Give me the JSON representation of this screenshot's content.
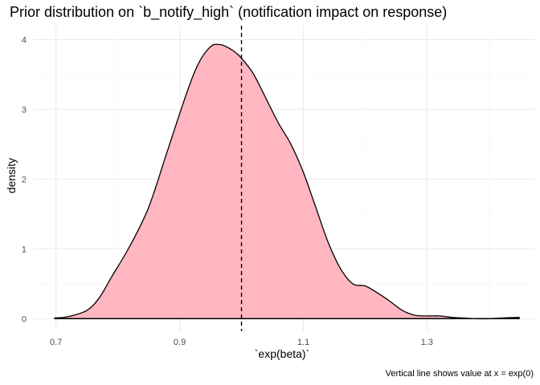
{
  "chart_data": {
    "type": "area",
    "title": "Prior distribution on `b_notify_high` (notification impact on response)",
    "xlabel": "`exp(beta)`",
    "ylabel": "density",
    "caption": "Vertical line shows value at x = exp(0)",
    "xlim": [
      0.664,
      1.475
    ],
    "ylim": [
      -0.18,
      4.2
    ],
    "x_ticks": [
      0.7,
      0.9,
      1.1,
      1.3
    ],
    "x_tick_labels": [
      "0.7",
      "0.9",
      "1.1",
      "1.3"
    ],
    "x_minor": [
      0.8,
      1.0,
      1.2,
      1.4
    ],
    "y_ticks": [
      0,
      1,
      2,
      3,
      4
    ],
    "y_tick_labels": [
      "0",
      "1",
      "2",
      "3",
      "4"
    ],
    "y_minor": [
      0.5,
      1.5,
      2.5,
      3.5
    ],
    "grid": true,
    "fill_color": "#FFB6C1",
    "line_color": "#000000",
    "vline": {
      "x": 1.0,
      "style": "dashed"
    },
    "x": [
      0.697,
      0.72,
      0.75,
      0.77,
      0.79,
      0.82,
      0.85,
      0.88,
      0.91,
      0.93,
      0.95,
      0.965,
      0.975,
      0.985,
      0.995,
      1.005,
      1.02,
      1.04,
      1.06,
      1.08,
      1.1,
      1.12,
      1.14,
      1.16,
      1.18,
      1.2,
      1.22,
      1.24,
      1.26,
      1.28,
      1.3,
      1.32,
      1.34,
      1.36,
      1.38,
      1.4,
      1.42,
      1.45
    ],
    "y": [
      0.01,
      0.03,
      0.12,
      0.3,
      0.6,
      1.05,
      1.6,
      2.4,
      3.2,
      3.65,
      3.9,
      3.93,
      3.9,
      3.85,
      3.78,
      3.68,
      3.5,
      3.15,
      2.8,
      2.5,
      2.1,
      1.6,
      1.1,
      0.72,
      0.5,
      0.47,
      0.37,
      0.25,
      0.12,
      0.05,
      0.04,
      0.04,
      0.02,
      0.01,
      0.0,
      0.0,
      0.01,
      0.02
    ]
  }
}
